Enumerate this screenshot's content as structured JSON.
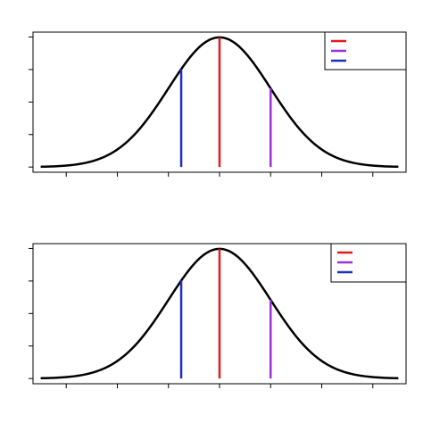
{
  "chart_data": [
    {
      "type": "line",
      "curve": {
        "mean": 0,
        "sd": 1,
        "xmin": -3.5,
        "xmax": 3.5,
        "color": "#000000"
      },
      "xlim": [
        -3.65,
        3.65
      ],
      "ylim": [
        -0.016,
        0.415
      ],
      "x_ticks": [
        -3,
        -2,
        -1,
        0,
        1,
        2,
        3
      ],
      "y_ticks": [
        0.0,
        0.1,
        0.2,
        0.3,
        0.4
      ],
      "tick_labels_shown": false,
      "markers": [
        {
          "x": 0.0,
          "color": "#e41a1c"
        },
        {
          "x": 1.0,
          "color": "#9b30d9"
        },
        {
          "x": -0.75,
          "color": "#1f2fbf"
        }
      ],
      "legend": {
        "position": "top-right",
        "entries": [
          "",
          "",
          ""
        ],
        "colors": [
          "#e41a1c",
          "#9b30d9",
          "#1f2fbf"
        ]
      },
      "grid": false
    },
    {
      "type": "line",
      "curve": {
        "mean": 0,
        "sd": 1,
        "xmin": -3.5,
        "xmax": 3.5,
        "color": "#000000"
      },
      "xlim": [
        -3.65,
        3.65
      ],
      "ylim": [
        -0.016,
        0.415
      ],
      "x_ticks": [
        -3,
        -2,
        -1,
        0,
        1,
        2,
        3
      ],
      "y_ticks": [
        0.0,
        0.1,
        0.2,
        0.3,
        0.4
      ],
      "tick_labels_shown": false,
      "markers": [
        {
          "x": 0.0,
          "color": "#e41a1c"
        },
        {
          "x": 1.0,
          "color": "#9b30d9"
        },
        {
          "x": -0.75,
          "color": "#1f2fbf"
        }
      ],
      "legend": {
        "position": "top-right",
        "entries": [
          "",
          "",
          ""
        ],
        "colors": [
          "#e41a1c",
          "#9b30d9",
          "#1f2fbf"
        ]
      },
      "grid": false
    }
  ]
}
